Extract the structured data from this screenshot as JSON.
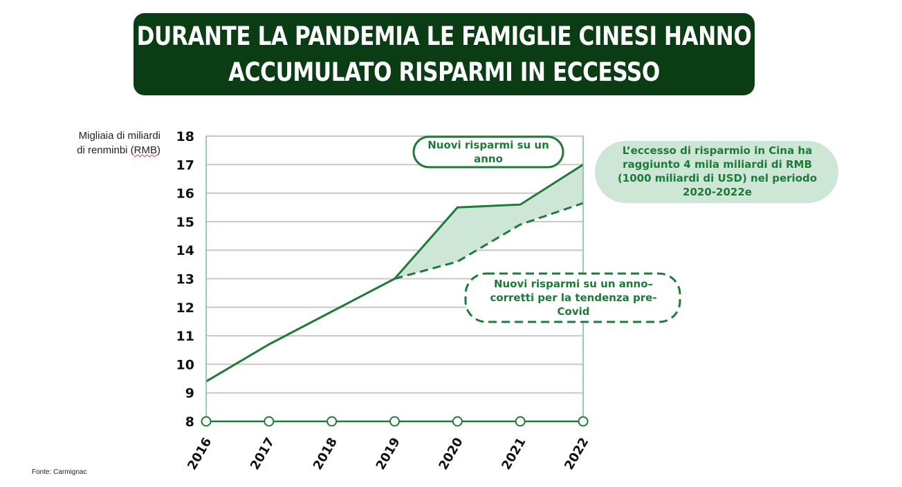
{
  "title": "DURANTE LA PANDEMIA LE FAMIGLIE CINESI HANNO ACCUMULATO RISPARMI IN ECCESSO",
  "title_lines": [
    "DURANTE LA PANDEMIA LE FAMIGLIE CINESI HANNO",
    "ACCUMULATO RISPARMI IN ECCESSO"
  ],
  "unit_label": {
    "line1": "Migliaia di miliardi",
    "line2_pre": "di renminbi (",
    "line2_wavy": "RMB",
    "line2_post": ")"
  },
  "source": "Fonte:  Carmignac",
  "colors": {
    "title_bg": "#0b3d14",
    "line": "#1e7a37",
    "fill": "#cde6d6",
    "grid": "#c8c8c8",
    "axis": "#1e7a37"
  },
  "annotations": {
    "actual": "Nuovi risparmi su un anno",
    "trend": "Nuovi risparmi su un anno–corretti per la tendenza pre-Covid",
    "excess": "L’eccesso di risparmio in Cina ha raggiunto 4 mila miliardi di RMB (1000 miliardi di USD) nel periodo 2020-2022e"
  },
  "chart_data": {
    "type": "line",
    "categories": [
      "2016",
      "2017",
      "2018",
      "2019",
      "2020",
      "2021",
      "2022"
    ],
    "ylim": [
      8,
      18
    ],
    "yticks": [
      8,
      9,
      10,
      11,
      12,
      13,
      14,
      15,
      16,
      17,
      18
    ],
    "grid": true,
    "series": [
      {
        "name": "Nuovi risparmi su un anno",
        "style": "solid",
        "values": [
          9.4,
          10.7,
          11.85,
          13.0,
          15.5,
          15.6,
          17.0
        ]
      },
      {
        "name": "Nuovi risparmi su un anno–corretti per la tendenza pre-Covid",
        "style": "dashed",
        "values": [
          null,
          null,
          null,
          13.0,
          13.6,
          14.9,
          15.65
        ]
      }
    ],
    "shaded_area": "between series from 2019 to 2022"
  }
}
